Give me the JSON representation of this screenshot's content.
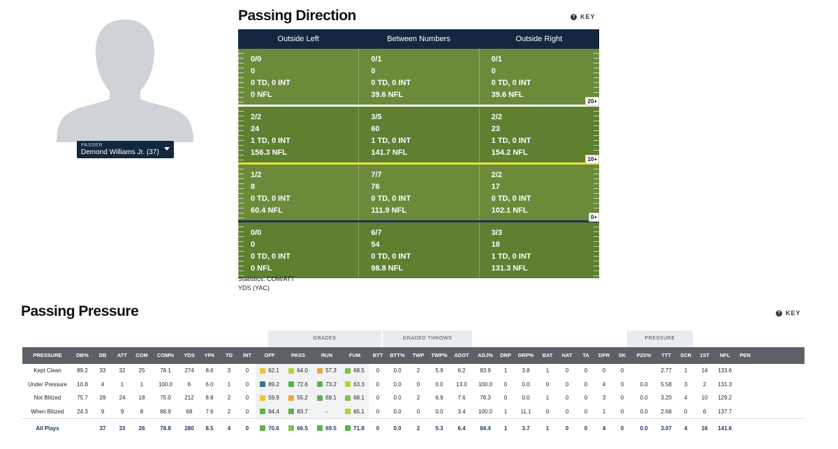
{
  "passer": {
    "caption": "PASSER",
    "name": "Demond Williams Jr. (37)"
  },
  "direction": {
    "title": "Passing Direction",
    "key_label": "KEY",
    "columns": [
      "Outside Left",
      "Between Numbers",
      "Outside Right"
    ],
    "zones": [
      {
        "yard_marker": "20+",
        "cells": [
          [
            "0/0",
            "0",
            "0 TD, 0 INT",
            "0 NFL"
          ],
          [
            "0/1",
            "0",
            "0 TD, 0 INT",
            "39.6 NFL"
          ],
          [
            "0/1",
            "0",
            "0 TD, 0 INT",
            "39.6 NFL"
          ]
        ]
      },
      {
        "yard_marker": "10+",
        "cells": [
          [
            "2/2",
            "24",
            "1 TD, 0 INT",
            "156.3 NFL"
          ],
          [
            "3/5",
            "60",
            "1 TD, 0 INT",
            "141.7 NFL"
          ],
          [
            "2/2",
            "23",
            "1 TD, 0 INT",
            "154.2 NFL"
          ]
        ]
      },
      {
        "yard_marker": "0+",
        "cells": [
          [
            "1/2",
            "8",
            "0 TD, 0 INT",
            "60.4 NFL"
          ],
          [
            "7/7",
            "76",
            "0 TD, 0 INT",
            "111.9 NFL"
          ],
          [
            "2/2",
            "17",
            "0 TD, 0 INT",
            "102.1 NFL"
          ]
        ]
      },
      {
        "yard_marker": "",
        "cells": [
          [
            "0/0",
            "0",
            "0 TD, 0 INT",
            "0 NFL"
          ],
          [
            "6/7",
            "54",
            "0 TD, 0 INT",
            "98.8 NFL"
          ],
          [
            "3/3",
            "18",
            "1 TD, 0 INT",
            "131.3 NFL"
          ]
        ]
      }
    ],
    "notes": [
      "Statistics: COM/ATT",
      "YDS (YAC)"
    ]
  },
  "pressure": {
    "title": "Passing Pressure",
    "key_label": "KEY",
    "groups": {
      "grades": "GRADES",
      "graded_throws": "GRADED THROWS",
      "pressure": "PRESSURE"
    },
    "headers": [
      "PRESSURE",
      "DB%",
      "DB",
      "ATT",
      "COM",
      "COM%",
      "YDS",
      "YPA",
      "TD",
      "INT",
      "OFF",
      "PASS",
      "RUN",
      "FUM",
      "BTT",
      "BTT%",
      "TWP",
      "TWP%",
      "ADOT",
      "ADJ%",
      "DRP",
      "DRP%",
      "BAT",
      "HAT",
      "TA",
      "DPR",
      "SK",
      "P2S%",
      "TTT",
      "SCR",
      "1ST",
      "NFL",
      "PEN"
    ],
    "rows": [
      [
        "Kept Clean",
        "89.2",
        "33",
        "32",
        "25",
        "78.1",
        "274",
        "8.6",
        "3",
        "0",
        "62.1",
        "64.0",
        "57.3",
        "68.5",
        "0",
        "0.0",
        "2",
        "5.9",
        "6.2",
        "83.9",
        "1",
        "3.8",
        "1",
        "0",
        "0",
        "0",
        "0",
        "",
        "2.77",
        "1",
        "14",
        "133.6",
        ""
      ],
      [
        "Under Pressure",
        "10.8",
        "4",
        "1",
        "1",
        "100.0",
        "6",
        "6.0",
        "1",
        "0",
        "89.2",
        "72.6",
        "73.2",
        "63.3",
        "0",
        "0.0",
        "0",
        "0.0",
        "13.0",
        "100.0",
        "0",
        "0.0",
        "0",
        "0",
        "0",
        "4",
        "0",
        "0.0",
        "5.58",
        "3",
        "2",
        "131.3",
        ""
      ],
      [
        "Not Blitzed",
        "75.7",
        "28",
        "24",
        "18",
        "75.0",
        "212",
        "8.8",
        "2",
        "0",
        "59.9",
        "55.2",
        "69.1",
        "68.1",
        "0",
        "0.0",
        "2",
        "6.9",
        "7.6",
        "78.3",
        "0",
        "0.0",
        "1",
        "0",
        "0",
        "3",
        "0",
        "0.0",
        "3.20",
        "4",
        "10",
        "129.2",
        ""
      ],
      [
        "When Blitzed",
        "24.3",
        "9",
        "9",
        "8",
        "88.9",
        "68",
        "7.6",
        "2",
        "0",
        "84.4",
        "83.7",
        "-",
        "65.1",
        "0",
        "0.0",
        "0",
        "0.0",
        "3.4",
        "100.0",
        "1",
        "11.1",
        "0",
        "0",
        "0",
        "1",
        "0",
        "0.0",
        "2.68",
        "0",
        "6",
        "137.7",
        ""
      ]
    ],
    "total": [
      "All Plays",
      "",
      "37",
      "33",
      "26",
      "78.8",
      "280",
      "8.5",
      "4",
      "0",
      "70.6",
      "66.5",
      "69.5",
      "71.8",
      "0",
      "0.0",
      "2",
      "5.3",
      "6.4",
      "84.4",
      "1",
      "3.7",
      "1",
      "0",
      "0",
      "4",
      "0",
      "0.0",
      "3.07",
      "4",
      "16",
      "141.6",
      ""
    ],
    "grade_colors": {
      "row0": [
        "#e8c53a",
        "#b6cf3c",
        "#f1a63a",
        "#7fc04a"
      ],
      "row1": [
        "#3c6e8f",
        "#5db24a",
        "#5db24a",
        "#b6cf3c"
      ],
      "row2": [
        "#e8c53a",
        "#f1a63a",
        "#5db24a",
        "#7fc04a"
      ],
      "row3": [
        "#5db24a",
        "#5db24a",
        "",
        "#b6cf3c"
      ],
      "total": [
        "#5db24a",
        "#7fc04a",
        "#5db24a",
        "#5db24a"
      ]
    }
  }
}
